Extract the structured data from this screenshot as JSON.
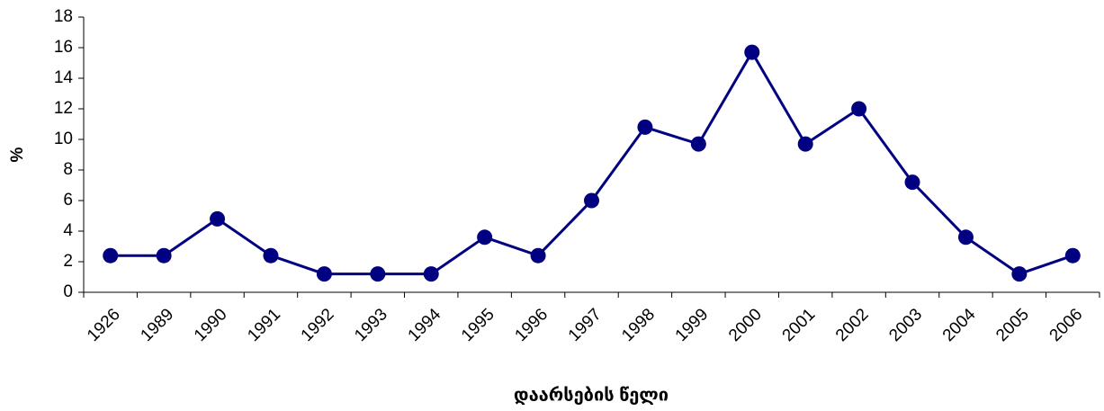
{
  "chart_data": {
    "type": "line",
    "y_label": "%",
    "x_label": "დაარსების წელი",
    "categories": [
      "1926",
      "1989",
      "1990",
      "1991",
      "1992",
      "1993",
      "1994",
      "1995",
      "1996",
      "1997",
      "1998",
      "1999",
      "2000",
      "2001",
      "2002",
      "2003",
      "2004",
      "2005",
      "2006"
    ],
    "series": [
      {
        "color": "#000080",
        "values": [
          2.4,
          2.4,
          4.8,
          2.4,
          1.2,
          1.2,
          1.2,
          3.6,
          2.4,
          6.0,
          10.8,
          9.7,
          15.7,
          9.7,
          12.0,
          7.2,
          3.6,
          1.2,
          2.4
        ]
      }
    ],
    "ylim": [
      0,
      18
    ],
    "yticks": [
      0,
      2,
      4,
      6,
      8,
      10,
      12,
      14,
      16,
      18
    ],
    "grid": false
  }
}
